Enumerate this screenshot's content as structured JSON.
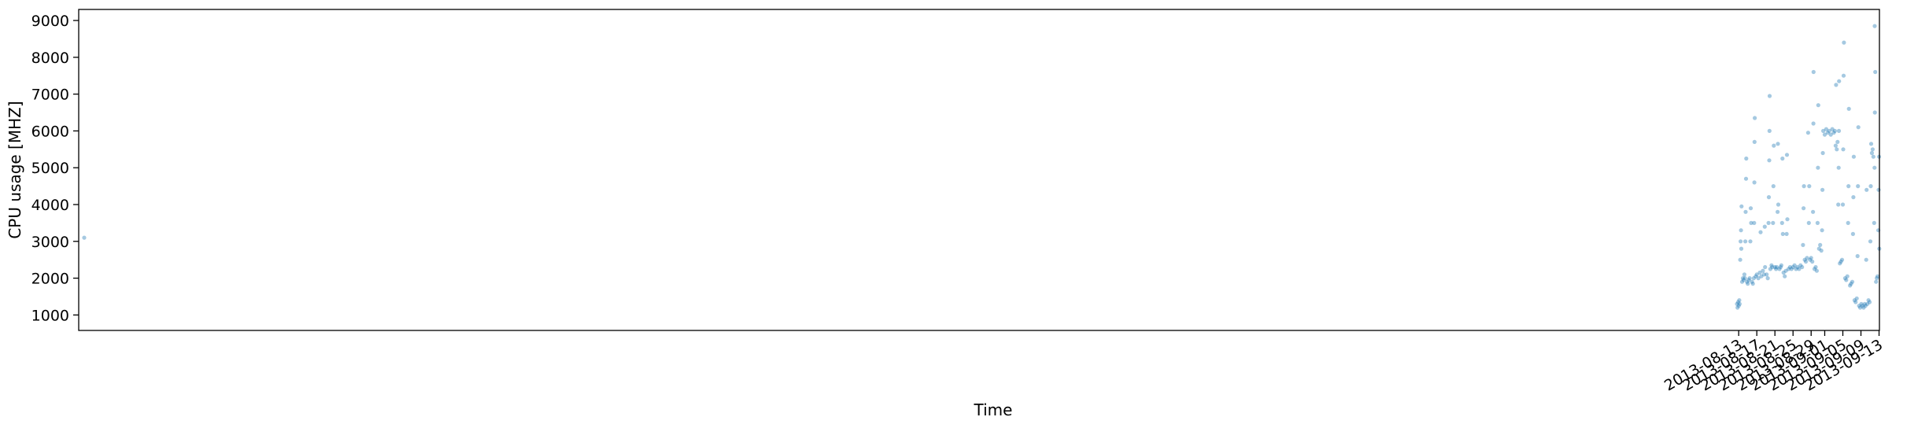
{
  "chart_data": {
    "type": "scatter",
    "title": "",
    "xlabel": "Time",
    "ylabel": "CPU usage [MHZ]",
    "x_axis_type": "date",
    "xlim": [
      "2012-08-11T09:00",
      "2013-09-13T02:00"
    ],
    "ylim": [
      580,
      9300
    ],
    "grid": false,
    "legend": "none",
    "x_ticks": [
      "2013-08-13",
      "2013-08-17",
      "2013-08-21",
      "2013-08-25",
      "2013-08-29",
      "2013-09-01",
      "2013-09-05",
      "2013-09-09",
      "2013-09-13"
    ],
    "y_ticks": [
      1000,
      2000,
      3000,
      4000,
      5000,
      6000,
      7000,
      8000,
      9000
    ],
    "marker_color": "#1f77b4",
    "marker_opacity": 0.4,
    "series": [
      {
        "name": "",
        "points": [
          [
            "2012-08-12T14:00",
            3100
          ],
          [
            "2013-08-12T15:00",
            1300
          ],
          [
            "2013-08-12T18:00",
            1200
          ],
          [
            "2013-08-12T21:00",
            1350
          ],
          [
            "2013-08-13T00:00",
            1250
          ],
          [
            "2013-08-13T03:00",
            1400
          ],
          [
            "2013-08-13T05:00",
            1300
          ],
          [
            "2013-08-13T08:00",
            2500
          ],
          [
            "2013-08-13T10:00",
            3000
          ],
          [
            "2013-08-13T12:00",
            3300
          ],
          [
            "2013-08-13T14:00",
            2800
          ],
          [
            "2013-08-13T15:00",
            3950
          ],
          [
            "2013-08-13T18:00",
            1900
          ],
          [
            "2013-08-13T22:00",
            2000
          ],
          [
            "2013-08-14T02:00",
            1950
          ],
          [
            "2013-08-14T06:00",
            2100
          ],
          [
            "2013-08-14T09:00",
            2000
          ],
          [
            "2013-08-14T11:00",
            3000
          ],
          [
            "2013-08-14T13:00",
            3800
          ],
          [
            "2013-08-14T15:00",
            4700
          ],
          [
            "2013-08-14T16:00",
            5250
          ],
          [
            "2013-08-14T20:00",
            1900
          ],
          [
            "2013-08-15T00:00",
            1850
          ],
          [
            "2013-08-15T05:00",
            1950
          ],
          [
            "2013-08-15T10:00",
            2000
          ],
          [
            "2013-08-15T14:00",
            3000
          ],
          [
            "2013-08-15T16:00",
            3900
          ],
          [
            "2013-08-15T18:00",
            3500
          ],
          [
            "2013-08-15T22:00",
            1900
          ],
          [
            "2013-08-16T03:00",
            1850
          ],
          [
            "2013-08-16T08:00",
            2000
          ],
          [
            "2013-08-16T10:00",
            3500
          ],
          [
            "2013-08-16T11:00",
            4600
          ],
          [
            "2013-08-16T12:00",
            5700
          ],
          [
            "2013-08-16T13:00",
            6350
          ],
          [
            "2013-08-16T18:00",
            2050
          ],
          [
            "2013-08-17T00:00",
            2100
          ],
          [
            "2013-08-17T08:00",
            2000
          ],
          [
            "2013-08-17T16:00",
            2150
          ],
          [
            "2013-08-18T00:00",
            2050
          ],
          [
            "2013-08-18T08:00",
            2200
          ],
          [
            "2013-08-18T14:00",
            2100
          ],
          [
            "2013-08-18T20:00",
            2300
          ],
          [
            "2013-08-19T04:00",
            2100
          ],
          [
            "2013-08-19T10:00",
            2000
          ],
          [
            "2013-08-17T20:00",
            3250
          ],
          [
            "2013-08-18T18:00",
            3400
          ],
          [
            "2013-08-19T14:00",
            3500
          ],
          [
            "2013-08-19T16:00",
            4200
          ],
          [
            "2013-08-19T18:00",
            5200
          ],
          [
            "2013-08-19T19:00",
            6000
          ],
          [
            "2013-08-19T20:00",
            6950
          ],
          [
            "2013-08-20T00:00",
            2250
          ],
          [
            "2013-08-20T06:00",
            2350
          ],
          [
            "2013-08-20T10:00",
            2300
          ],
          [
            "2013-08-20T14:00",
            3500
          ],
          [
            "2013-08-20T16:00",
            4500
          ],
          [
            "2013-08-20T18:00",
            5600
          ],
          [
            "2013-08-21T00:00",
            2300
          ],
          [
            "2013-08-21T06:00",
            2250
          ],
          [
            "2013-08-21T10:00",
            2300
          ],
          [
            "2013-08-21T14:00",
            3800
          ],
          [
            "2013-08-21T16:00",
            5650
          ],
          [
            "2013-08-21T18:00",
            4000
          ],
          [
            "2013-08-22T00:00",
            2250
          ],
          [
            "2013-08-22T06:00",
            2300
          ],
          [
            "2013-08-22T10:00",
            2350
          ],
          [
            "2013-08-22T14:00",
            3500
          ],
          [
            "2013-08-22T16:00",
            5250
          ],
          [
            "2013-08-22T18:00",
            3200
          ],
          [
            "2013-08-22T22:00",
            2150
          ],
          [
            "2013-08-23T04:00",
            2050
          ],
          [
            "2013-08-23T10:00",
            2200
          ],
          [
            "2013-08-23T14:00",
            3200
          ],
          [
            "2013-08-23T16:00",
            5350
          ],
          [
            "2013-08-23T18:00",
            3600
          ],
          [
            "2013-08-24T00:00",
            2250
          ],
          [
            "2013-08-24T08:00",
            2300
          ],
          [
            "2013-08-24T16:00",
            2250
          ],
          [
            "2013-08-25T00:00",
            2300
          ],
          [
            "2013-08-25T08:00",
            2350
          ],
          [
            "2013-08-25T16:00",
            2250
          ],
          [
            "2013-08-26T00:00",
            2300
          ],
          [
            "2013-08-26T08:00",
            2250
          ],
          [
            "2013-08-26T16:00",
            2350
          ],
          [
            "2013-08-27T00:00",
            2300
          ],
          [
            "2013-08-27T05:00",
            2900
          ],
          [
            "2013-08-27T08:00",
            3900
          ],
          [
            "2013-08-27T10:00",
            4500
          ],
          [
            "2013-08-27T14:00",
            2500
          ],
          [
            "2013-08-27T20:00",
            2450
          ],
          [
            "2013-08-28T02:00",
            2550
          ],
          [
            "2013-08-28T08:00",
            5950
          ],
          [
            "2013-08-28T12:00",
            3500
          ],
          [
            "2013-08-28T14:00",
            4500
          ],
          [
            "2013-08-28T18:00",
            2500
          ],
          [
            "2013-08-29T00:00",
            2550
          ],
          [
            "2013-08-29T06:00",
            2450
          ],
          [
            "2013-08-29T10:00",
            3800
          ],
          [
            "2013-08-29T12:00",
            6200
          ],
          [
            "2013-08-29T13:00",
            7600
          ],
          [
            "2013-08-29T18:00",
            2250
          ],
          [
            "2013-08-30T00:00",
            2300
          ],
          [
            "2013-08-30T06:00",
            2200
          ],
          [
            "2013-08-30T10:00",
            3500
          ],
          [
            "2013-08-30T12:00",
            5000
          ],
          [
            "2013-08-30T14:00",
            6700
          ],
          [
            "2013-08-30T18:00",
            2800
          ],
          [
            "2013-08-31T00:00",
            2900
          ],
          [
            "2013-08-31T06:00",
            2750
          ],
          [
            "2013-08-31T10:00",
            3300
          ],
          [
            "2013-08-31T12:00",
            4400
          ],
          [
            "2013-08-31T14:00",
            5400
          ],
          [
            "2013-08-31T16:00",
            6000
          ],
          [
            "2013-09-01T00:00",
            5900
          ],
          [
            "2013-09-01T08:00",
            6050
          ],
          [
            "2013-09-01T16:00",
            5950
          ],
          [
            "2013-09-02T00:00",
            6000
          ],
          [
            "2013-09-02T08:00",
            5900
          ],
          [
            "2013-09-02T16:00",
            6050
          ],
          [
            "2013-09-03T00:00",
            5950
          ],
          [
            "2013-09-03T06:00",
            6000
          ],
          [
            "2013-09-03T10:00",
            5600
          ],
          [
            "2013-09-03T16:00",
            5500
          ],
          [
            "2013-09-03T20:00",
            5700
          ],
          [
            "2013-09-03T12:00",
            7250
          ],
          [
            "2013-09-04T00:00",
            4000
          ],
          [
            "2013-09-04T02:00",
            5000
          ],
          [
            "2013-09-04T03:00",
            6000
          ],
          [
            "2013-09-04T04:00",
            7350
          ],
          [
            "2013-09-04T08:00",
            2400
          ],
          [
            "2013-09-04T14:00",
            2450
          ],
          [
            "2013-09-04T20:00",
            2500
          ],
          [
            "2013-09-05T00:00",
            4000
          ],
          [
            "2013-09-05T02:00",
            5500
          ],
          [
            "2013-09-05T04:00",
            7500
          ],
          [
            "2013-09-05T06:00",
            8400
          ],
          [
            "2013-09-05T12:00",
            2000
          ],
          [
            "2013-09-05T18:00",
            1950
          ],
          [
            "2013-09-06T00:00",
            2050
          ],
          [
            "2013-09-06T04:00",
            3500
          ],
          [
            "2013-09-06T06:00",
            4500
          ],
          [
            "2013-09-06T08:00",
            6600
          ],
          [
            "2013-09-06T14:00",
            1800
          ],
          [
            "2013-09-06T20:00",
            1850
          ],
          [
            "2013-09-07T02:00",
            1900
          ],
          [
            "2013-09-07T06:00",
            3200
          ],
          [
            "2013-09-07T08:00",
            4200
          ],
          [
            "2013-09-07T10:00",
            5300
          ],
          [
            "2013-09-07T14:00",
            1400
          ],
          [
            "2013-09-07T20:00",
            1350
          ],
          [
            "2013-09-08T02:00",
            1450
          ],
          [
            "2013-09-08T06:00",
            2600
          ],
          [
            "2013-09-08T08:00",
            4500
          ],
          [
            "2013-09-08T10:00",
            6100
          ],
          [
            "2013-09-08T14:00",
            1250
          ],
          [
            "2013-09-08T20:00",
            1200
          ],
          [
            "2013-09-09T02:00",
            1300
          ],
          [
            "2013-09-09T08:00",
            1250
          ],
          [
            "2013-09-09T14:00",
            1200
          ],
          [
            "2013-09-09T20:00",
            1300
          ],
          [
            "2013-09-10T00:00",
            1250
          ],
          [
            "2013-09-10T04:00",
            2500
          ],
          [
            "2013-09-10T06:00",
            4400
          ],
          [
            "2013-09-10T10:00",
            1300
          ],
          [
            "2013-09-10T16:00",
            1400
          ],
          [
            "2013-09-10T22:00",
            1350
          ],
          [
            "2013-09-11T02:00",
            3000
          ],
          [
            "2013-09-11T04:00",
            4500
          ],
          [
            "2013-09-11T06:00",
            5650
          ],
          [
            "2013-09-11T10:00",
            5400
          ],
          [
            "2013-09-11T14:00",
            5500
          ],
          [
            "2013-09-11T18:00",
            5300
          ],
          [
            "2013-09-11T22:00",
            3500
          ],
          [
            "2013-09-12T00:00",
            5000
          ],
          [
            "2013-09-12T02:00",
            6500
          ],
          [
            "2013-09-12T04:00",
            7600
          ],
          [
            "2013-09-12T01:00",
            8850
          ],
          [
            "2013-09-12T08:00",
            1900
          ],
          [
            "2013-09-12T12:00",
            2000
          ],
          [
            "2013-09-12T16:00",
            2050
          ],
          [
            "2013-09-12T20:00",
            3300
          ],
          [
            "2013-09-12T22:00",
            4400
          ],
          [
            "2013-09-13T00:00",
            5300
          ],
          [
            "2013-09-13T01:00",
            2800
          ]
        ]
      }
    ]
  }
}
